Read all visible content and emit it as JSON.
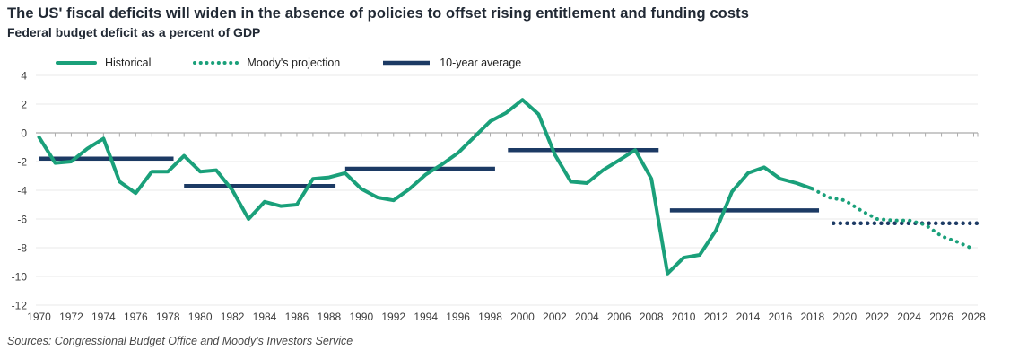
{
  "header": {
    "title": "The US' fiscal deficits will widen in the absence of policies to offset rising entitlement and funding costs",
    "subtitle": "Federal budget deficit as a percent of GDP"
  },
  "legend": [
    {
      "label": "Historical",
      "style": "solid",
      "color": "#1aa07a"
    },
    {
      "label": "Moody's projection",
      "style": "dotted",
      "color": "#1aa07a"
    },
    {
      "label": "10-year average",
      "style": "solid",
      "color": "#1c3a64"
    }
  ],
  "source": "Sources: Congressional Budget Office and Moody's Investors Service",
  "colors": {
    "teal": "#1aa07a",
    "navy": "#1c3a64",
    "grid": "#e8e8e8",
    "zero_axis": "#ababab",
    "tick_label": "#3d3d3d"
  },
  "chart_data": {
    "type": "line",
    "title": "Federal budget deficit as a percent of GDP",
    "xlabel": "",
    "ylabel": "",
    "xlim": [
      1970,
      2028.4
    ],
    "ylim": [
      -12,
      4
    ],
    "grid": true,
    "legend_position": "top-left",
    "xticks": [
      1970,
      1972,
      1974,
      1976,
      1978,
      1980,
      1982,
      1984,
      1986,
      1988,
      1990,
      1992,
      1994,
      1996,
      1998,
      2000,
      2002,
      2004,
      2006,
      2008,
      2010,
      2012,
      2014,
      2016,
      2018,
      2020,
      2022,
      2024,
      2026,
      2028
    ],
    "yticks": [
      4,
      2,
      0,
      -2,
      -4,
      -6,
      -8,
      -10,
      -12
    ],
    "series": [
      {
        "name": "Historical",
        "style": "solid",
        "color": "#1aa07a",
        "x": [
          1970,
          1971,
          1972,
          1973,
          1974,
          1975,
          1976,
          1977,
          1978,
          1979,
          1980,
          1981,
          1982,
          1983,
          1984,
          1985,
          1986,
          1987,
          1988,
          1989,
          1990,
          1991,
          1992,
          1993,
          1994,
          1995,
          1996,
          1997,
          1998,
          1999,
          2000,
          2001,
          2002,
          2003,
          2004,
          2005,
          2006,
          2007,
          2008,
          2009,
          2010,
          2011,
          2012,
          2013,
          2014,
          2015,
          2016,
          2017,
          2018
        ],
        "y": [
          -0.3,
          -2.1,
          -2.0,
          -1.1,
          -0.4,
          -3.4,
          -4.2,
          -2.7,
          -2.7,
          -1.6,
          -2.7,
          -2.6,
          -4.0,
          -6.0,
          -4.8,
          -5.1,
          -5.0,
          -3.2,
          -3.1,
          -2.8,
          -3.9,
          -4.5,
          -4.7,
          -3.9,
          -2.9,
          -2.2,
          -1.4,
          -0.3,
          0.8,
          1.4,
          2.3,
          1.3,
          -1.5,
          -3.4,
          -3.5,
          -2.6,
          -1.9,
          -1.2,
          -3.2,
          -9.8,
          -8.7,
          -8.5,
          -6.8,
          -4.1,
          -2.8,
          -2.4,
          -3.2,
          -3.5,
          -3.9
        ]
      },
      {
        "name": "Moody's projection",
        "style": "dotted",
        "color": "#1aa07a",
        "x": [
          2018,
          2019,
          2020,
          2021,
          2022,
          2023,
          2024,
          2025,
          2026,
          2027,
          2028
        ],
        "y": [
          -3.9,
          -4.5,
          -4.7,
          -5.4,
          -6.0,
          -6.1,
          -6.1,
          -6.4,
          -7.2,
          -7.6,
          -8.1
        ]
      }
    ],
    "ten_year_averages": [
      {
        "x0": 1970.0,
        "x1": 1978.35,
        "value": -1.8,
        "style": "solid"
      },
      {
        "x0": 1979.0,
        "x1": 1988.4,
        "value": -3.7,
        "style": "solid"
      },
      {
        "x0": 1989.0,
        "x1": 1998.3,
        "value": -2.5,
        "style": "solid"
      },
      {
        "x0": 1999.1,
        "x1": 2008.45,
        "value": -1.2,
        "style": "solid"
      },
      {
        "x0": 2009.15,
        "x1": 2018.4,
        "value": -5.4,
        "style": "solid"
      },
      {
        "x0": 2019.3,
        "x1": 2028.4,
        "value": -6.3,
        "style": "dotted"
      }
    ]
  }
}
